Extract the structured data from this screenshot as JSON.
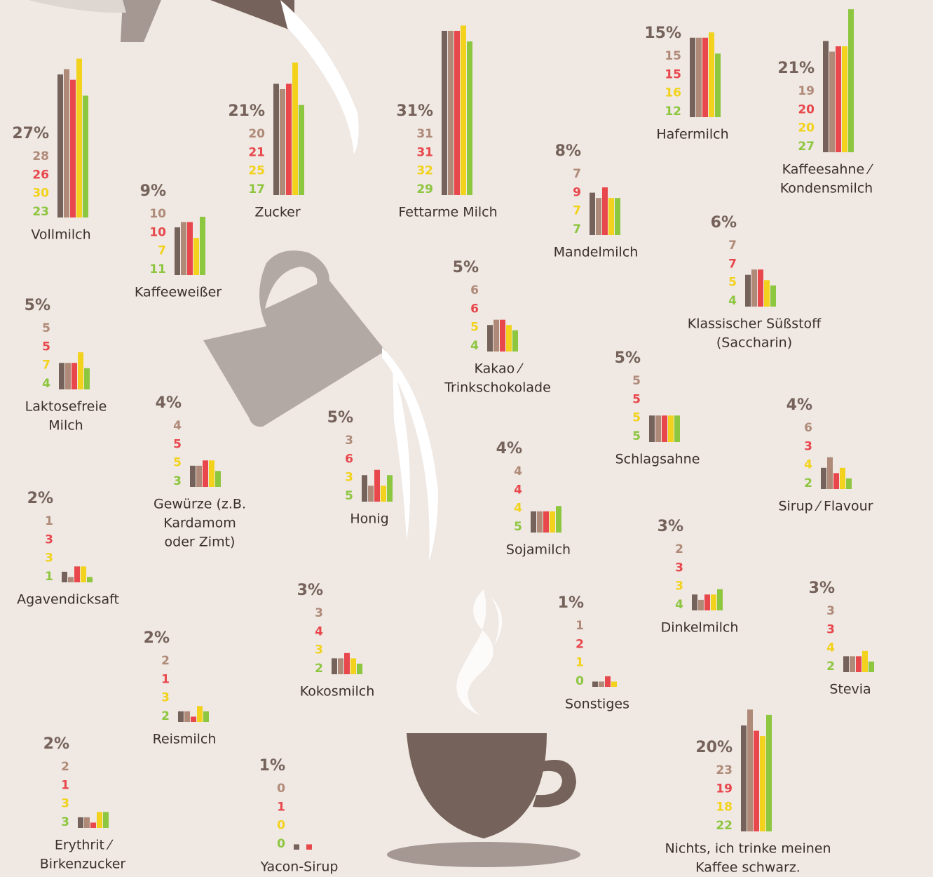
{
  "items": [
    {
      "label_lines": [
        "Vollmilch"
      ],
      "total": 27,
      "total_label": "27%",
      "values": [
        28,
        26,
        30,
        23
      ]
    },
    {
      "label_lines": [
        "Kaffeeweißer"
      ],
      "total": 9,
      "total_label": "9%",
      "values": [
        10,
        10,
        7,
        11
      ]
    },
    {
      "label_lines": [
        "Zucker"
      ],
      "total": 21,
      "total_label": "21%",
      "values": [
        20,
        21,
        25,
        17
      ]
    },
    {
      "label_lines": [
        "Fettarme Milch"
      ],
      "total": 31,
      "total_label": "31%",
      "values": [
        31,
        31,
        32,
        29
      ]
    },
    {
      "label_lines": [
        "Mandelmilch"
      ],
      "total": 8,
      "total_label": "8%",
      "values": [
        7,
        9,
        7,
        7
      ]
    },
    {
      "label_lines": [
        "Hafermilch"
      ],
      "total": 15,
      "total_label": "15%",
      "values": [
        15,
        15,
        16,
        12
      ]
    },
    {
      "label_lines": [
        "Kaffeesahne ⁄",
        "Kondensmilch"
      ],
      "total": 21,
      "total_label": "21%",
      "values": [
        19,
        20,
        20,
        27
      ]
    },
    {
      "label_lines": [
        "Laktosefreie",
        "Milch"
      ],
      "total": 5,
      "total_label": "5%",
      "values": [
        5,
        5,
        7,
        4
      ]
    },
    {
      "label_lines": [
        "Kakao ⁄",
        "Trinkschokolade"
      ],
      "total": 5,
      "total_label": "5%",
      "values": [
        6,
        6,
        5,
        4
      ]
    },
    {
      "label_lines": [
        "Klassischer Süßstoff",
        "(Saccharin)"
      ],
      "total": 6,
      "total_label": "6%",
      "values": [
        7,
        7,
        5,
        4
      ]
    },
    {
      "label_lines": [
        "Gewürze (z.B.",
        "Kardamom",
        "oder Zimt)"
      ],
      "total": 4,
      "total_label": "4%",
      "values": [
        4,
        5,
        5,
        3
      ]
    },
    {
      "label_lines": [
        "Honig"
      ],
      "total": 5,
      "total_label": "5%",
      "values": [
        3,
        6,
        3,
        5
      ]
    },
    {
      "label_lines": [
        "Schlagsahne"
      ],
      "total": 5,
      "total_label": "5%",
      "values": [
        5,
        5,
        5,
        5
      ]
    },
    {
      "label_lines": [
        "Sirup ⁄ Flavour"
      ],
      "total": 4,
      "total_label": "4%",
      "values": [
        6,
        3,
        4,
        2
      ]
    },
    {
      "label_lines": [
        "Sojamilch"
      ],
      "total": 4,
      "total_label": "4%",
      "values": [
        4,
        4,
        4,
        5
      ]
    },
    {
      "label_lines": [
        "Agavendicksaft"
      ],
      "total": 2,
      "total_label": "2%",
      "values": [
        1,
        3,
        3,
        1
      ]
    },
    {
      "label_lines": [
        "Dinkelmilch"
      ],
      "total": 3,
      "total_label": "3%",
      "values": [
        2,
        3,
        3,
        4
      ]
    },
    {
      "label_lines": [
        "Kokosmilch"
      ],
      "total": 3,
      "total_label": "3%",
      "values": [
        3,
        4,
        3,
        2
      ]
    },
    {
      "label_lines": [
        "Sonstiges"
      ],
      "total": 1,
      "total_label": "1%",
      "values": [
        1,
        2,
        1,
        0
      ]
    },
    {
      "label_lines": [
        "Stevia"
      ],
      "total": 3,
      "total_label": "3%",
      "values": [
        3,
        3,
        4,
        2
      ]
    },
    {
      "label_lines": [
        "Reismilch"
      ],
      "total": 2,
      "total_label": "2%",
      "values": [
        2,
        1,
        3,
        2
      ]
    },
    {
      "label_lines": [
        "Erythrit ⁄",
        "Birkenzucker"
      ],
      "total": 2,
      "total_label": "2%",
      "values": [
        2,
        1,
        3,
        3
      ]
    },
    {
      "label_lines": [
        "Yacon-Sirup"
      ],
      "total": 1,
      "total_label": "1%",
      "values": [
        0,
        1,
        0,
        0
      ]
    },
    {
      "label_lines": [
        "Nichts, ich trinke meinen",
        "Kaffee schwarz."
      ],
      "total": 20,
      "total_label": "20%",
      "values": [
        23,
        19,
        18,
        22
      ]
    }
  ],
  "colors": {
    "total": "#75625a",
    "values": [
      "#b08a78",
      "#e8474c",
      "#f2d21c",
      "#8dc63f"
    ]
  }
}
